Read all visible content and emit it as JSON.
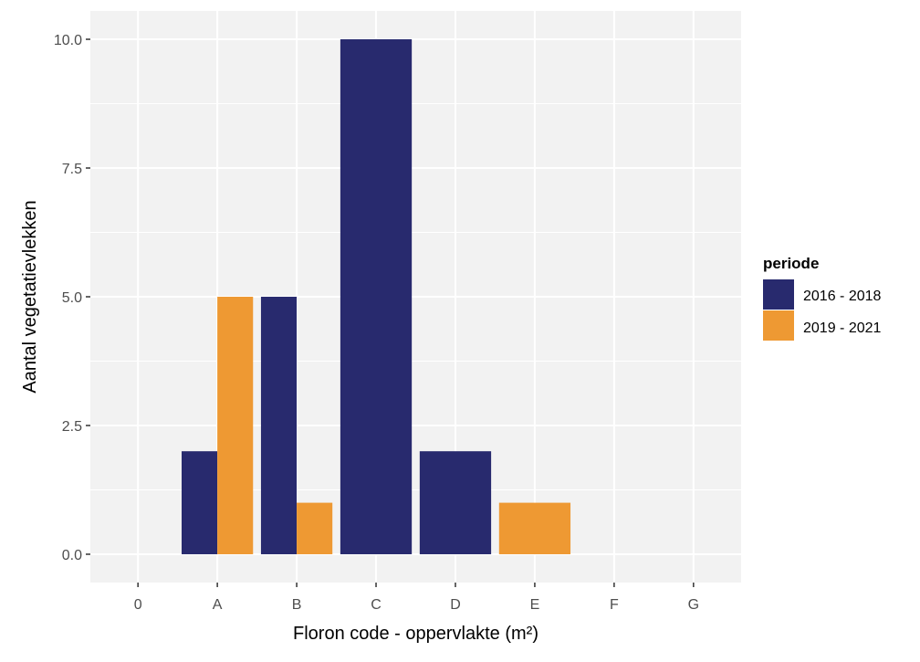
{
  "chart_data": {
    "type": "bar",
    "barmode": "dodge",
    "categories": [
      "0",
      "A",
      "B",
      "C",
      "D",
      "E",
      "F",
      "G"
    ],
    "series": [
      {
        "name": "2016 - 2018",
        "color": "#282a6e",
        "values": [
          null,
          2,
          5,
          10,
          2,
          null,
          null,
          null
        ]
      },
      {
        "name": "2019 - 2021",
        "color": "#ee9933",
        "values": [
          null,
          5,
          1,
          null,
          null,
          1,
          null,
          null
        ]
      }
    ],
    "xlabel": "Floron code - oppervlakte (m²)",
    "ylabel": "Aantal vegetatievlekken",
    "ylim": [
      -0.55,
      10.55
    ],
    "yticks": [
      0,
      2.5,
      5,
      7.5,
      10
    ],
    "ytick_labels": [
      "0.0",
      "2.5",
      "5.0",
      "7.5",
      "10.0"
    ],
    "legend_title": "periode",
    "legend_position": "right",
    "grid": true,
    "panel_background": "#f2f2f2"
  }
}
